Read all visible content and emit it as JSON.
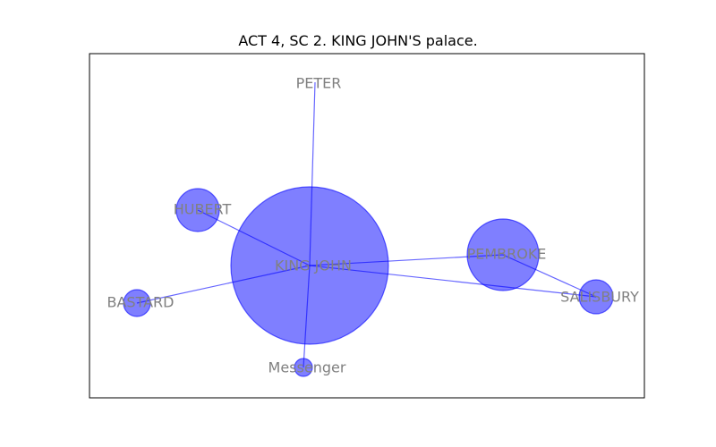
{
  "title": "ACT 4, SC 2. KING JOHN'S palace.",
  "colors": {
    "node": "#0000ff",
    "edge": "#0000ff",
    "label": "#808080",
    "frame": "#000000"
  },
  "nodes": [
    {
      "id": "king-john",
      "label": "KING JOHN",
      "weight": 88
    },
    {
      "id": "peter",
      "label": "PETER",
      "weight": 0
    },
    {
      "id": "hubert",
      "label": "HUBERT",
      "weight": 24
    },
    {
      "id": "pembroke",
      "label": "PEMBROKE",
      "weight": 40
    },
    {
      "id": "salisbury",
      "label": "SALISBURY",
      "weight": 19
    },
    {
      "id": "bastard",
      "label": "BASTARD",
      "weight": 15
    },
    {
      "id": "messenger",
      "label": "Messenger",
      "weight": 10
    }
  ],
  "edges": [
    [
      "king-john",
      "peter"
    ],
    [
      "king-john",
      "hubert"
    ],
    [
      "king-john",
      "pembroke"
    ],
    [
      "king-john",
      "salisbury"
    ],
    [
      "king-john",
      "bastard"
    ],
    [
      "king-john",
      "messenger"
    ],
    [
      "pembroke",
      "salisbury"
    ]
  ]
}
